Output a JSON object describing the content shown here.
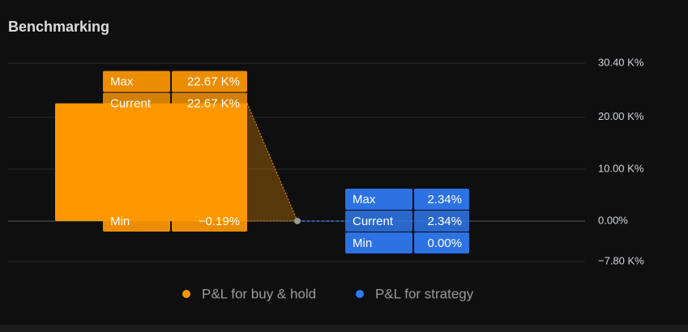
{
  "chart_data": {
    "type": "benchmark",
    "title": "Benchmarking",
    "categories": [
      "Max",
      "Current",
      "Min"
    ],
    "ylim": [
      -7800,
      30400
    ],
    "yticks": [
      {
        "value": 30400,
        "label": "30.40 K%"
      },
      {
        "value": 20000,
        "label": "20.00 K%"
      },
      {
        "value": 10000,
        "label": "10.00 K%"
      },
      {
        "value": 0,
        "label": "0.00%"
      },
      {
        "value": -7800,
        "label": "−7.80 K%"
      }
    ],
    "grid": true,
    "legend": "bottom",
    "series": [
      {
        "name": "P&L for buy & hold",
        "color": "#ff9800",
        "values": [
          22670,
          22670,
          -0.19
        ],
        "value_labels": [
          "22.67 K%",
          "22.67 K%",
          "−0.19%"
        ]
      },
      {
        "name": "P&L for strategy",
        "color": "#2f7bf5",
        "values": [
          2.34,
          2.34,
          0
        ],
        "value_labels": [
          "2.34%",
          "2.34%",
          "0.00%"
        ]
      }
    ]
  }
}
